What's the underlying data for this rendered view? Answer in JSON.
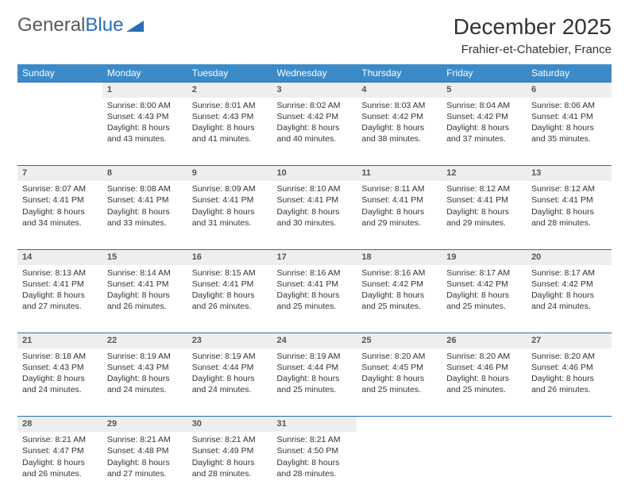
{
  "logo": {
    "text1": "General",
    "text2": "Blue"
  },
  "title": "December 2025",
  "location": "Frahier-et-Chatebier, France",
  "colors": {
    "header_bg": "#3b8bc9",
    "header_text": "#ffffff",
    "daynum_bg": "#eceeef",
    "border": "#2a6fb5",
    "text": "#333333",
    "logo_gray": "#5a5a5a",
    "logo_blue": "#2a6fb5"
  },
  "weekdays": [
    "Sunday",
    "Monday",
    "Tuesday",
    "Wednesday",
    "Thursday",
    "Friday",
    "Saturday"
  ],
  "weeks": [
    [
      null,
      {
        "day": "1",
        "sunrise": "8:00 AM",
        "sunset": "4:43 PM",
        "daylight": "8 hours and 43 minutes."
      },
      {
        "day": "2",
        "sunrise": "8:01 AM",
        "sunset": "4:43 PM",
        "daylight": "8 hours and 41 minutes."
      },
      {
        "day": "3",
        "sunrise": "8:02 AM",
        "sunset": "4:42 PM",
        "daylight": "8 hours and 40 minutes."
      },
      {
        "day": "4",
        "sunrise": "8:03 AM",
        "sunset": "4:42 PM",
        "daylight": "8 hours and 38 minutes."
      },
      {
        "day": "5",
        "sunrise": "8:04 AM",
        "sunset": "4:42 PM",
        "daylight": "8 hours and 37 minutes."
      },
      {
        "day": "6",
        "sunrise": "8:06 AM",
        "sunset": "4:41 PM",
        "daylight": "8 hours and 35 minutes."
      }
    ],
    [
      {
        "day": "7",
        "sunrise": "8:07 AM",
        "sunset": "4:41 PM",
        "daylight": "8 hours and 34 minutes."
      },
      {
        "day": "8",
        "sunrise": "8:08 AM",
        "sunset": "4:41 PM",
        "daylight": "8 hours and 33 minutes."
      },
      {
        "day": "9",
        "sunrise": "8:09 AM",
        "sunset": "4:41 PM",
        "daylight": "8 hours and 31 minutes."
      },
      {
        "day": "10",
        "sunrise": "8:10 AM",
        "sunset": "4:41 PM",
        "daylight": "8 hours and 30 minutes."
      },
      {
        "day": "11",
        "sunrise": "8:11 AM",
        "sunset": "4:41 PM",
        "daylight": "8 hours and 29 minutes."
      },
      {
        "day": "12",
        "sunrise": "8:12 AM",
        "sunset": "4:41 PM",
        "daylight": "8 hours and 29 minutes."
      },
      {
        "day": "13",
        "sunrise": "8:12 AM",
        "sunset": "4:41 PM",
        "daylight": "8 hours and 28 minutes."
      }
    ],
    [
      {
        "day": "14",
        "sunrise": "8:13 AM",
        "sunset": "4:41 PM",
        "daylight": "8 hours and 27 minutes."
      },
      {
        "day": "15",
        "sunrise": "8:14 AM",
        "sunset": "4:41 PM",
        "daylight": "8 hours and 26 minutes."
      },
      {
        "day": "16",
        "sunrise": "8:15 AM",
        "sunset": "4:41 PM",
        "daylight": "8 hours and 26 minutes."
      },
      {
        "day": "17",
        "sunrise": "8:16 AM",
        "sunset": "4:41 PM",
        "daylight": "8 hours and 25 minutes."
      },
      {
        "day": "18",
        "sunrise": "8:16 AM",
        "sunset": "4:42 PM",
        "daylight": "8 hours and 25 minutes."
      },
      {
        "day": "19",
        "sunrise": "8:17 AM",
        "sunset": "4:42 PM",
        "daylight": "8 hours and 25 minutes."
      },
      {
        "day": "20",
        "sunrise": "8:17 AM",
        "sunset": "4:42 PM",
        "daylight": "8 hours and 24 minutes."
      }
    ],
    [
      {
        "day": "21",
        "sunrise": "8:18 AM",
        "sunset": "4:43 PM",
        "daylight": "8 hours and 24 minutes."
      },
      {
        "day": "22",
        "sunrise": "8:19 AM",
        "sunset": "4:43 PM",
        "daylight": "8 hours and 24 minutes."
      },
      {
        "day": "23",
        "sunrise": "8:19 AM",
        "sunset": "4:44 PM",
        "daylight": "8 hours and 24 minutes."
      },
      {
        "day": "24",
        "sunrise": "8:19 AM",
        "sunset": "4:44 PM",
        "daylight": "8 hours and 25 minutes."
      },
      {
        "day": "25",
        "sunrise": "8:20 AM",
        "sunset": "4:45 PM",
        "daylight": "8 hours and 25 minutes."
      },
      {
        "day": "26",
        "sunrise": "8:20 AM",
        "sunset": "4:46 PM",
        "daylight": "8 hours and 25 minutes."
      },
      {
        "day": "27",
        "sunrise": "8:20 AM",
        "sunset": "4:46 PM",
        "daylight": "8 hours and 26 minutes."
      }
    ],
    [
      {
        "day": "28",
        "sunrise": "8:21 AM",
        "sunset": "4:47 PM",
        "daylight": "8 hours and 26 minutes."
      },
      {
        "day": "29",
        "sunrise": "8:21 AM",
        "sunset": "4:48 PM",
        "daylight": "8 hours and 27 minutes."
      },
      {
        "day": "30",
        "sunrise": "8:21 AM",
        "sunset": "4:49 PM",
        "daylight": "8 hours and 28 minutes."
      },
      {
        "day": "31",
        "sunrise": "8:21 AM",
        "sunset": "4:50 PM",
        "daylight": "8 hours and 28 minutes."
      },
      null,
      null,
      null
    ]
  ],
  "labels": {
    "sunrise": "Sunrise:",
    "sunset": "Sunset:",
    "daylight": "Daylight:"
  }
}
